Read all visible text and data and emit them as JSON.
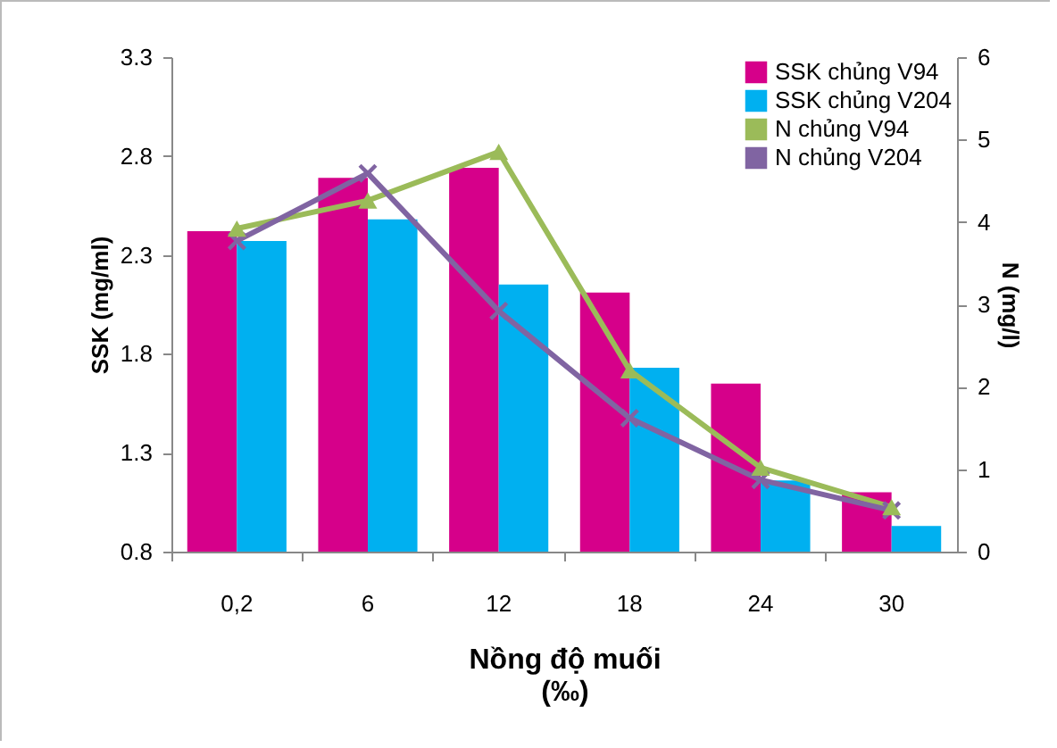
{
  "chart_data": {
    "type": "bar",
    "xlabel": "Nồng độ muối\n(‰)",
    "ylabel": "SSK (mg/ml)",
    "y2label": "N (mg/l)",
    "categories": [
      "0,2",
      "6",
      "12",
      "18",
      "24",
      "30"
    ],
    "series": [
      {
        "name": "SSK chủng V94",
        "type": "bar",
        "color": "#d6008a",
        "values": [
          2.42,
          2.69,
          2.74,
          2.11,
          1.65,
          1.1
        ]
      },
      {
        "name": "SSK chủng V204",
        "type": "bar",
        "color": "#00b0f0",
        "values": [
          2.37,
          2.48,
          2.15,
          1.73,
          1.16,
          0.93
        ]
      },
      {
        "name": "N chủng V94",
        "type": "line",
        "axis": "y2",
        "marker": "triangle",
        "color": "#9bbb59",
        "values": [
          3.92,
          4.26,
          4.85,
          2.2,
          1.02,
          0.54
        ]
      },
      {
        "name": "N chủng V204",
        "type": "line",
        "axis": "y2",
        "marker": "cross",
        "color": "#8064a2",
        "values": [
          3.77,
          4.59,
          2.92,
          1.62,
          0.87,
          0.5
        ]
      }
    ],
    "ylim": [
      0.8,
      3.3
    ],
    "yticks": [
      0.8,
      1.3,
      1.8,
      2.3,
      2.8,
      3.3
    ],
    "y2lim": [
      0,
      6
    ],
    "y2ticks": [
      0,
      1,
      2,
      3,
      4,
      5,
      6
    ],
    "legend": "top right",
    "grid": false
  }
}
